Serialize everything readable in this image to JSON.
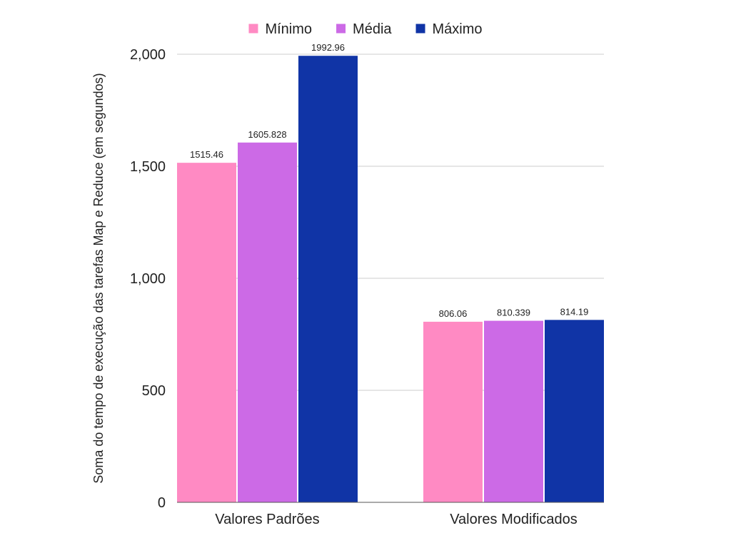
{
  "chart_data": {
    "type": "bar",
    "title": "",
    "xlabel": "",
    "ylabel": "Soma do tempo de execução das tarefas Map e Reduce (em segundos)",
    "categories": [
      "Valores Padrões",
      "Valores Modificados"
    ],
    "series": [
      {
        "name": "Mínimo",
        "color": "#ff8ac3",
        "values": [
          1515.46,
          806.06
        ],
        "labels": [
          "1515.46",
          "806.06"
        ]
      },
      {
        "name": "Média",
        "color": "#cc6ae6",
        "values": [
          1605.828,
          810.339
        ],
        "labels": [
          "1605.828",
          "810.339"
        ]
      },
      {
        "name": "Máximo",
        "color": "#1034a6",
        "values": [
          1992.96,
          814.19
        ],
        "labels": [
          "1992.96",
          "814.19"
        ]
      }
    ],
    "ylim": [
      0,
      2000
    ],
    "yticks": [
      0,
      500,
      1000,
      1500,
      2000
    ],
    "ytick_labels": [
      "0",
      "500",
      "1,000",
      "1,500",
      "2,000"
    ],
    "grid": true,
    "legend_position": "top-center"
  }
}
